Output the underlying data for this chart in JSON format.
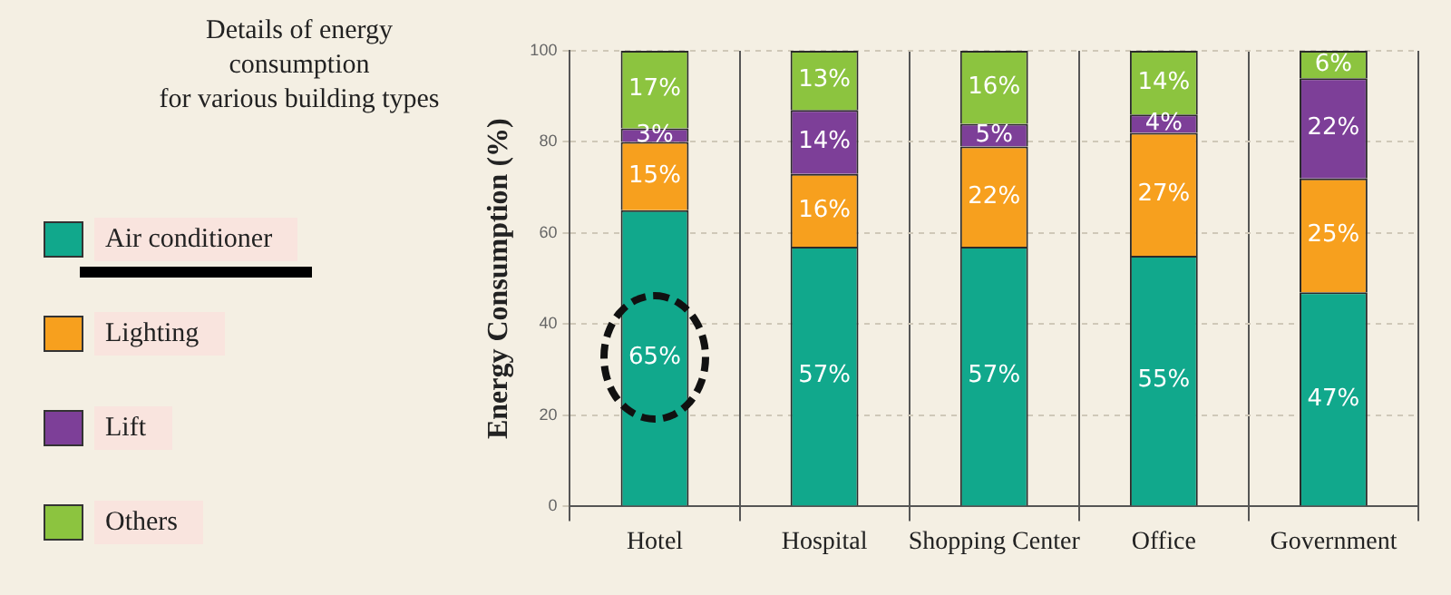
{
  "chart_data": {
    "type": "bar",
    "stacked": true,
    "legend_title": "Details of energy consumption\nfor various building types",
    "ylabel": "Energy Consumption (%)",
    "categories": [
      "Hotel",
      "Hospital",
      "Shopping Center",
      "Office",
      "Government"
    ],
    "series": [
      {
        "name": "Air conditioner",
        "color": "#11a88c",
        "values": [
          65,
          57,
          57,
          55,
          47
        ],
        "value_labels": [
          "65%",
          "57%",
          "57%",
          "55%",
          "47%"
        ]
      },
      {
        "name": "Lighting",
        "color": "#f7a01e",
        "values": [
          15,
          16,
          22,
          27,
          25
        ],
        "value_labels": [
          "15%",
          "16%",
          "22%",
          "27%",
          "25%"
        ]
      },
      {
        "name": "Lift",
        "color": "#7d3f98",
        "values": [
          3,
          14,
          5,
          4,
          22
        ],
        "value_labels": [
          "3%",
          "14%",
          "5%",
          "4%",
          "22%"
        ]
      },
      {
        "name": "Others",
        "color": "#8cc43f",
        "values": [
          17,
          13,
          16,
          14,
          6
        ],
        "value_labels": [
          "17%",
          "13%",
          "16%",
          "14%",
          "6%"
        ]
      }
    ],
    "ylim": [
      0,
      100
    ],
    "yticks": [
      0,
      20,
      40,
      60,
      80,
      100
    ],
    "grid": true,
    "legend": "left"
  }
}
